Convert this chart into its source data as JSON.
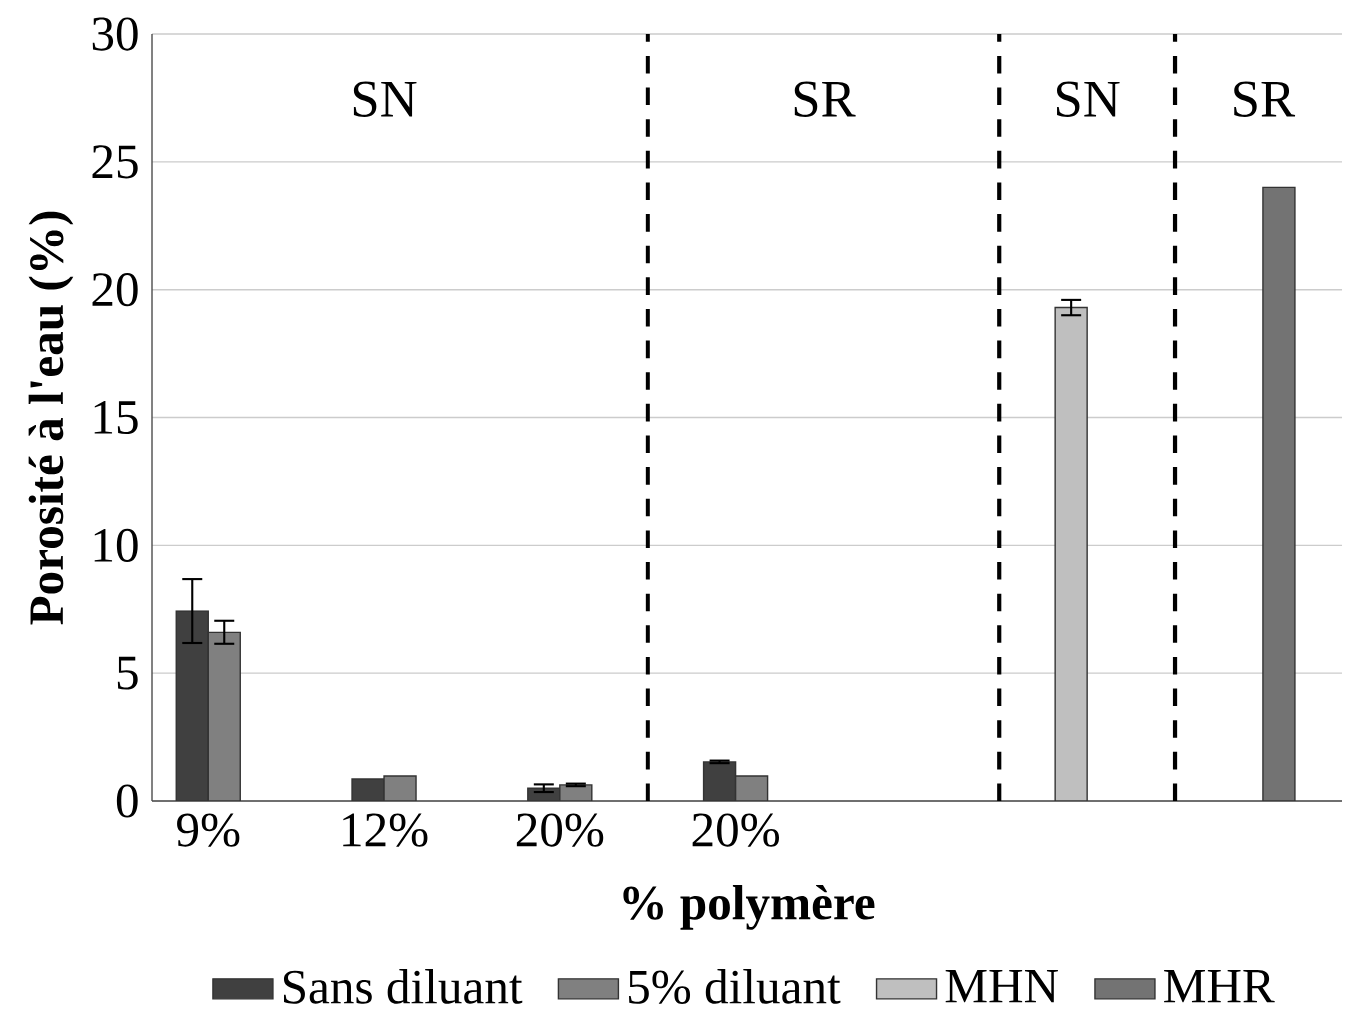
{
  "chart_data": {
    "type": "bar",
    "xlabel": "% polymère",
    "ylabel": "Porosité à l'eau (%)",
    "categories": [
      "9%",
      "12%",
      "20%",
      "20%",
      null,
      null,
      null
    ],
    "series": [
      {
        "name": "Sans diluant",
        "color": "#404040",
        "values": [
          7.43,
          0.86,
          0.5,
          1.53,
          null,
          null,
          null
        ],
        "errors": [
          1.25,
          null,
          0.15,
          0.05,
          null,
          null,
          null
        ]
      },
      {
        "name": "5% diluant",
        "color": "#808080",
        "values": [
          6.6,
          0.98,
          0.63,
          0.98,
          null,
          null,
          null
        ],
        "errors": [
          0.45,
          null,
          0.05,
          null,
          null,
          null,
          null
        ]
      },
      {
        "name": "MHN",
        "color": "#bfbfbf",
        "values": [
          null,
          null,
          null,
          null,
          null,
          19.3,
          null
        ],
        "errors": [
          null,
          null,
          null,
          null,
          null,
          0.3,
          null
        ]
      },
      {
        "name": "MHR",
        "color": "#737373",
        "values": [
          null,
          null,
          null,
          null,
          null,
          null,
          24.0
        ],
        "errors": [
          null,
          null,
          null,
          null,
          null,
          null,
          null
        ]
      }
    ],
    "ylim": [
      0,
      30
    ],
    "yticks": [
      0,
      5,
      10,
      15,
      20,
      25,
      30
    ],
    "grid": "y",
    "legend": "bottom",
    "annotations": [
      "SN",
      "SR",
      "SN",
      "SR"
    ]
  }
}
